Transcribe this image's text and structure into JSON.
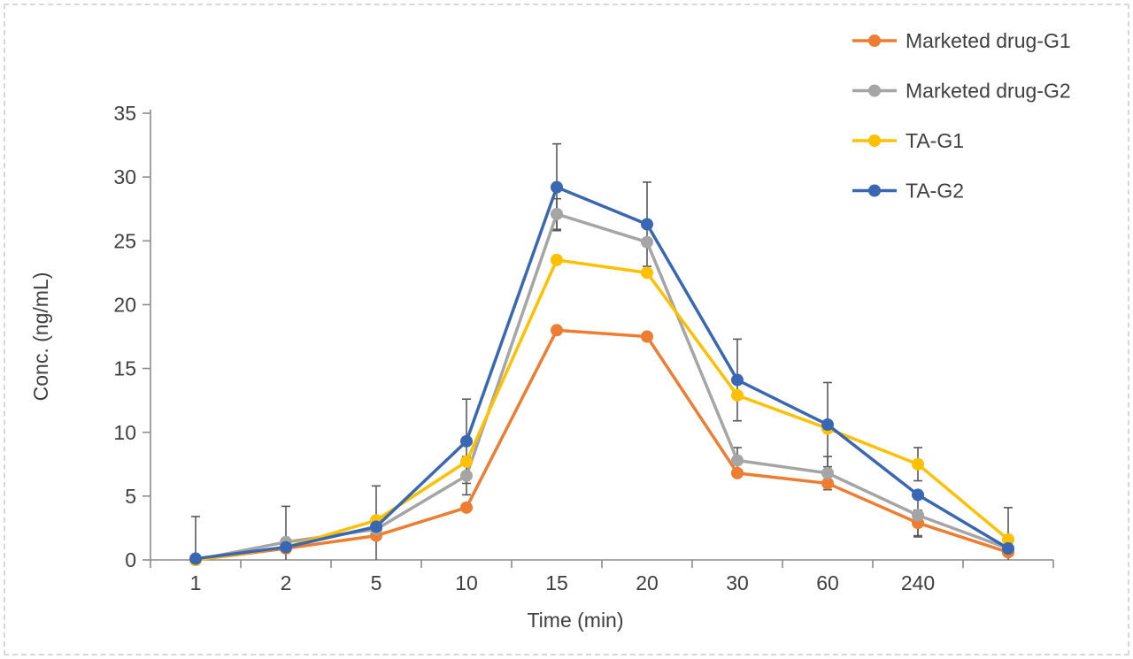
{
  "figure": {
    "background": "#FFFFFF",
    "border_color": "#D8D8D8",
    "text_color": "#404040",
    "axis_color": "#8C8C8C",
    "error_bar_color": "#595959"
  },
  "chart_data": {
    "type": "line",
    "title": "",
    "xlabel": "Time (min)",
    "ylabel": "Conc. (ng/mL)",
    "ylim": [
      0,
      35
    ],
    "ytick_step": 5,
    "ytick_labels": [
      "0",
      "5",
      "10",
      "15",
      "20",
      "25",
      "30",
      "35"
    ],
    "grid": false,
    "legend_position": "top-right",
    "categories": [
      "1",
      "2",
      "5",
      "10",
      "15",
      "20",
      "30",
      "60",
      "240",
      ""
    ],
    "series": [
      {
        "name": "Marketed drug-G1",
        "color": "#ED7D31",
        "values": [
          0,
          0.9,
          1.9,
          4.1,
          18.0,
          17.5,
          6.8,
          6.0,
          2.9,
          0.6
        ],
        "errors": [
          0,
          0,
          0,
          0,
          0,
          0,
          0,
          0,
          1.0,
          0
        ]
      },
      {
        "name": "Marketed drug-G2",
        "color": "#A5A5A5",
        "values": [
          0,
          1.4,
          2.4,
          6.6,
          27.1,
          24.9,
          7.8,
          6.8,
          3.5,
          0.9
        ],
        "errors": [
          0,
          0,
          0,
          1.5,
          1.2,
          0,
          1.0,
          1.3,
          1.7,
          0
        ]
      },
      {
        "name": "TA-G1",
        "color": "#FFC000",
        "values": [
          0,
          1.0,
          3.1,
          7.7,
          23.5,
          22.5,
          12.9,
          10.3,
          7.5,
          1.6
        ],
        "errors": [
          0,
          0,
          0,
          0,
          0,
          0,
          0,
          0,
          1.3,
          0
        ]
      },
      {
        "name": "TA-G2",
        "color": "#3A67B1",
        "values": [
          0.1,
          1.0,
          2.6,
          9.3,
          29.2,
          26.3,
          14.1,
          10.6,
          5.1,
          0.9
        ],
        "errors": [
          3.3,
          3.2,
          3.2,
          3.3,
          3.4,
          3.3,
          3.2,
          3.3,
          0,
          3.2
        ]
      }
    ]
  }
}
